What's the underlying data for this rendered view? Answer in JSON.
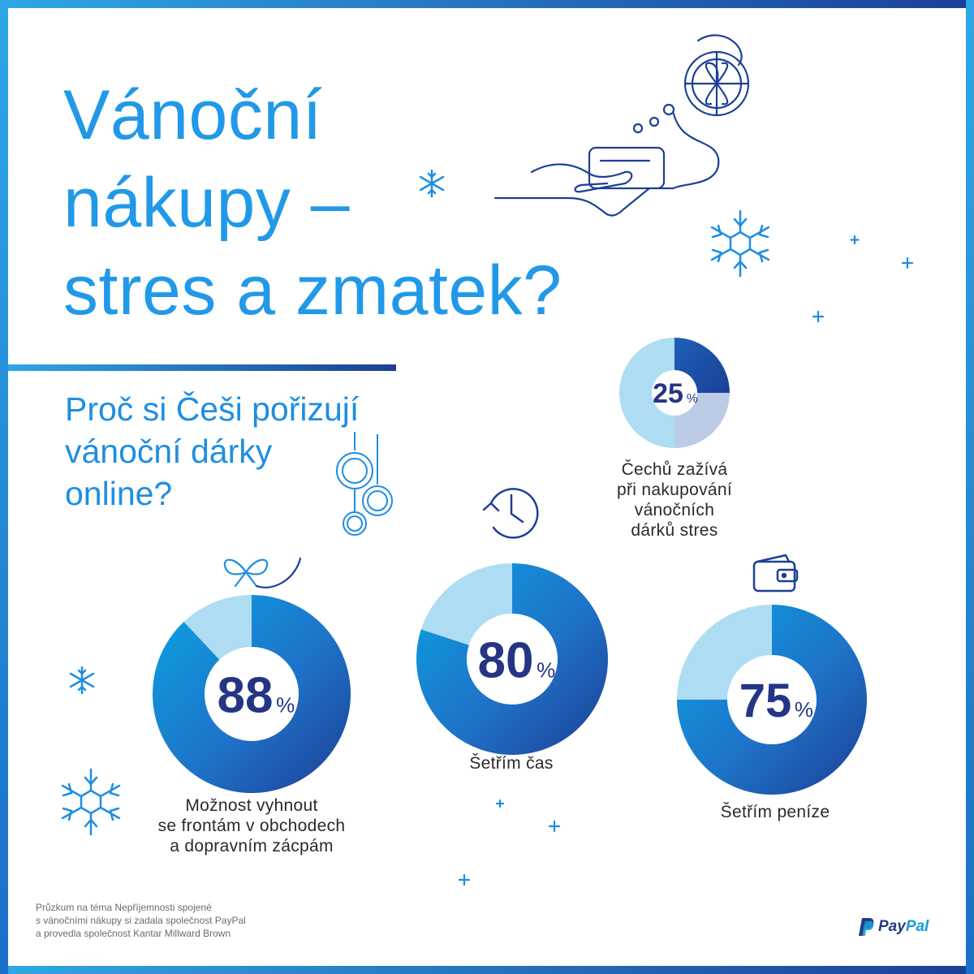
{
  "title_lines": [
    "Vánoční",
    "nákupy –",
    "stres a zmatek?"
  ],
  "subtitle_lines": [
    "Proč si Češi pořizují",
    "vánoční dárky",
    "online?"
  ],
  "chart_data": [
    {
      "type": "donut",
      "value": 25,
      "value_label": "25",
      "unit": "%",
      "label_lines": [
        "Čechů zažívá",
        "při nakupování",
        "vánočních",
        "dárků stres"
      ],
      "icon": ""
    },
    {
      "type": "donut",
      "value": 88,
      "value_label": "88",
      "unit": "%",
      "label_lines": [
        "Možnost vyhnout",
        "se frontám v obchodech",
        "a dopravním zácpám"
      ],
      "icon": "gift-bow-icon"
    },
    {
      "type": "donut",
      "value": 80,
      "value_label": "80",
      "unit": "%",
      "label_lines": [
        "Šetřím čas"
      ],
      "icon": "clock-icon"
    },
    {
      "type": "donut",
      "value": 75,
      "value_label": "75",
      "unit": "%",
      "label_lines": [
        "Šetřím peníze"
      ],
      "icon": "wallet-icon"
    }
  ],
  "footnote_lines": [
    "Průzkum na téma Nepříjemnosti spojené",
    "s vánočními nákupy si zadala společnost PayPal",
    "a provedla společnost Kantar Millward Brown"
  ],
  "brand": {
    "part1": "Pay",
    "part2": "Pal"
  },
  "colors": {
    "frame": "#1a7fd4",
    "title": "#2199e8",
    "donut_dark": "#1c3f96",
    "donut_mid": "#1e6fc4",
    "donut_light": "#0096d9",
    "donut_remainder": "#aedcf3",
    "value_text": "#253584"
  }
}
